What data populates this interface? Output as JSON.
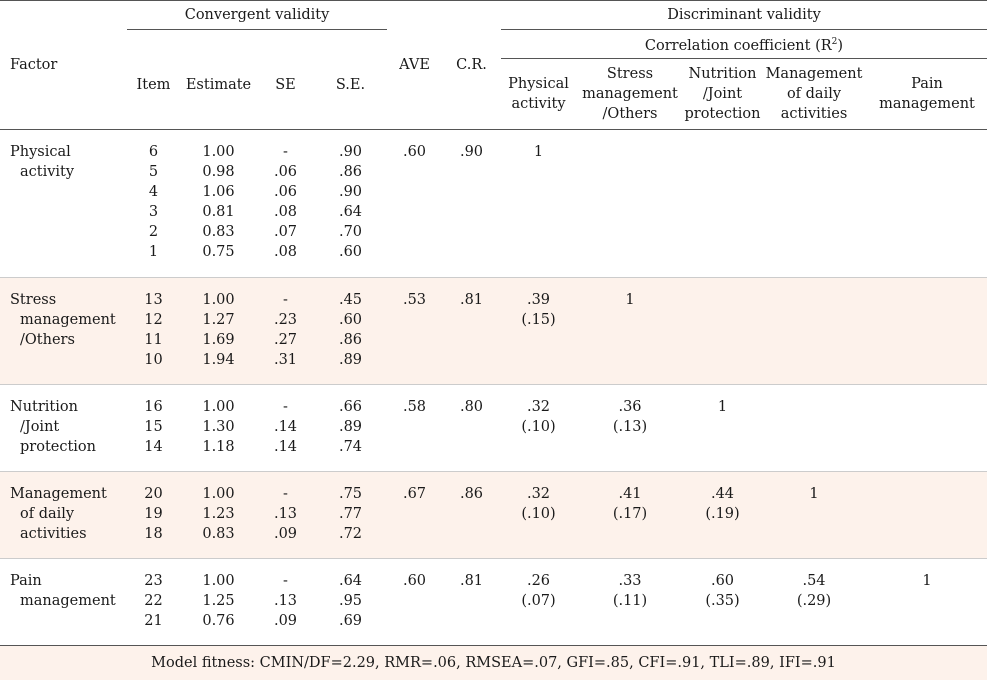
{
  "header": {
    "factor": "Factor",
    "convergent": "Convergent validity",
    "discriminant": "Discriminant validity",
    "correlation": "Correlation coefficient (R",
    "correlation_sup": "2",
    "correlation_end": ")",
    "item": "Item",
    "estimate": "Estimate",
    "se": "SE",
    "se2": "S.E.",
    "ave": "AVE",
    "cr": "C.R.",
    "dv_cols": [
      [
        "Physical",
        "activity"
      ],
      [
        "Stress",
        "management",
        "/Others"
      ],
      [
        "Nutrition",
        "/Joint",
        "protection"
      ],
      [
        "Management",
        "of daily",
        "activities"
      ],
      [
        "Pain",
        "management"
      ]
    ]
  },
  "groups": [
    {
      "factor": [
        "Physical",
        "activity"
      ],
      "items": [
        "6",
        "5",
        "4",
        "3",
        "2",
        "1"
      ],
      "estimates": [
        "1.00",
        "0.98",
        "1.06",
        "0.81",
        "0.83",
        "0.75"
      ],
      "se": [
        "-",
        ".06",
        ".06",
        ".08",
        ".07",
        ".08"
      ],
      "se2": [
        ".90",
        ".86",
        ".90",
        ".64",
        ".70",
        ".60"
      ],
      "ave": ".60",
      "cr": ".90",
      "corr": [
        [
          "1"
        ],
        [],
        [],
        [],
        []
      ]
    },
    {
      "factor": [
        "Stress",
        "management",
        "/Others"
      ],
      "items": [
        "13",
        "12",
        "11",
        "10"
      ],
      "estimates": [
        "1.00",
        "1.27",
        "1.69",
        "1.94"
      ],
      "se": [
        "-",
        ".23",
        ".27",
        ".31"
      ],
      "se2": [
        ".45",
        ".60",
        ".86",
        ".89"
      ],
      "ave": ".53",
      "cr": ".81",
      "corr": [
        [
          ".39",
          "(.15)"
        ],
        [
          "1"
        ],
        [],
        [],
        []
      ]
    },
    {
      "factor": [
        "Nutrition",
        "/Joint",
        "protection"
      ],
      "items": [
        "16",
        "15",
        "14"
      ],
      "estimates": [
        "1.00",
        "1.30",
        "1.18"
      ],
      "se": [
        "-",
        ".14",
        ".14"
      ],
      "se2": [
        ".66",
        ".89",
        ".74"
      ],
      "ave": ".58",
      "cr": ".80",
      "corr": [
        [
          ".32",
          "(.10)"
        ],
        [
          ".36",
          "(.13)"
        ],
        [
          "1"
        ],
        [],
        []
      ]
    },
    {
      "factor": [
        "Management",
        "of daily",
        "activities"
      ],
      "items": [
        "20",
        "19",
        "18"
      ],
      "estimates": [
        "1.00",
        "1.23",
        "0.83"
      ],
      "se": [
        "-",
        ".13",
        ".09"
      ],
      "se2": [
        ".75",
        ".77",
        ".72"
      ],
      "ave": ".67",
      "cr": ".86",
      "corr": [
        [
          ".32",
          "(.10)"
        ],
        [
          ".41",
          "(.17)"
        ],
        [
          ".44",
          "(.19)"
        ],
        [
          "1"
        ],
        []
      ]
    },
    {
      "factor": [
        "Pain",
        "management"
      ],
      "items": [
        "23",
        "22",
        "21"
      ],
      "estimates": [
        "1.00",
        "1.25",
        "0.76"
      ],
      "se": [
        "-",
        ".13",
        ".09"
      ],
      "se2": [
        ".64",
        ".95",
        ".69"
      ],
      "ave": ".60",
      "cr": ".81",
      "corr": [
        [
          ".26",
          "(.07)"
        ],
        [
          ".33",
          "(.11)"
        ],
        [
          ".60",
          "(.35)"
        ],
        [
          ".54",
          "(.29)"
        ],
        [
          "1"
        ]
      ]
    }
  ],
  "footer": "Model  fitness:  CMIN/DF=2.29,  RMR=.06,  RMSEA=.07,  GFI=.85,  CFI=.91,  TLI=.89,  IFI=.91"
}
